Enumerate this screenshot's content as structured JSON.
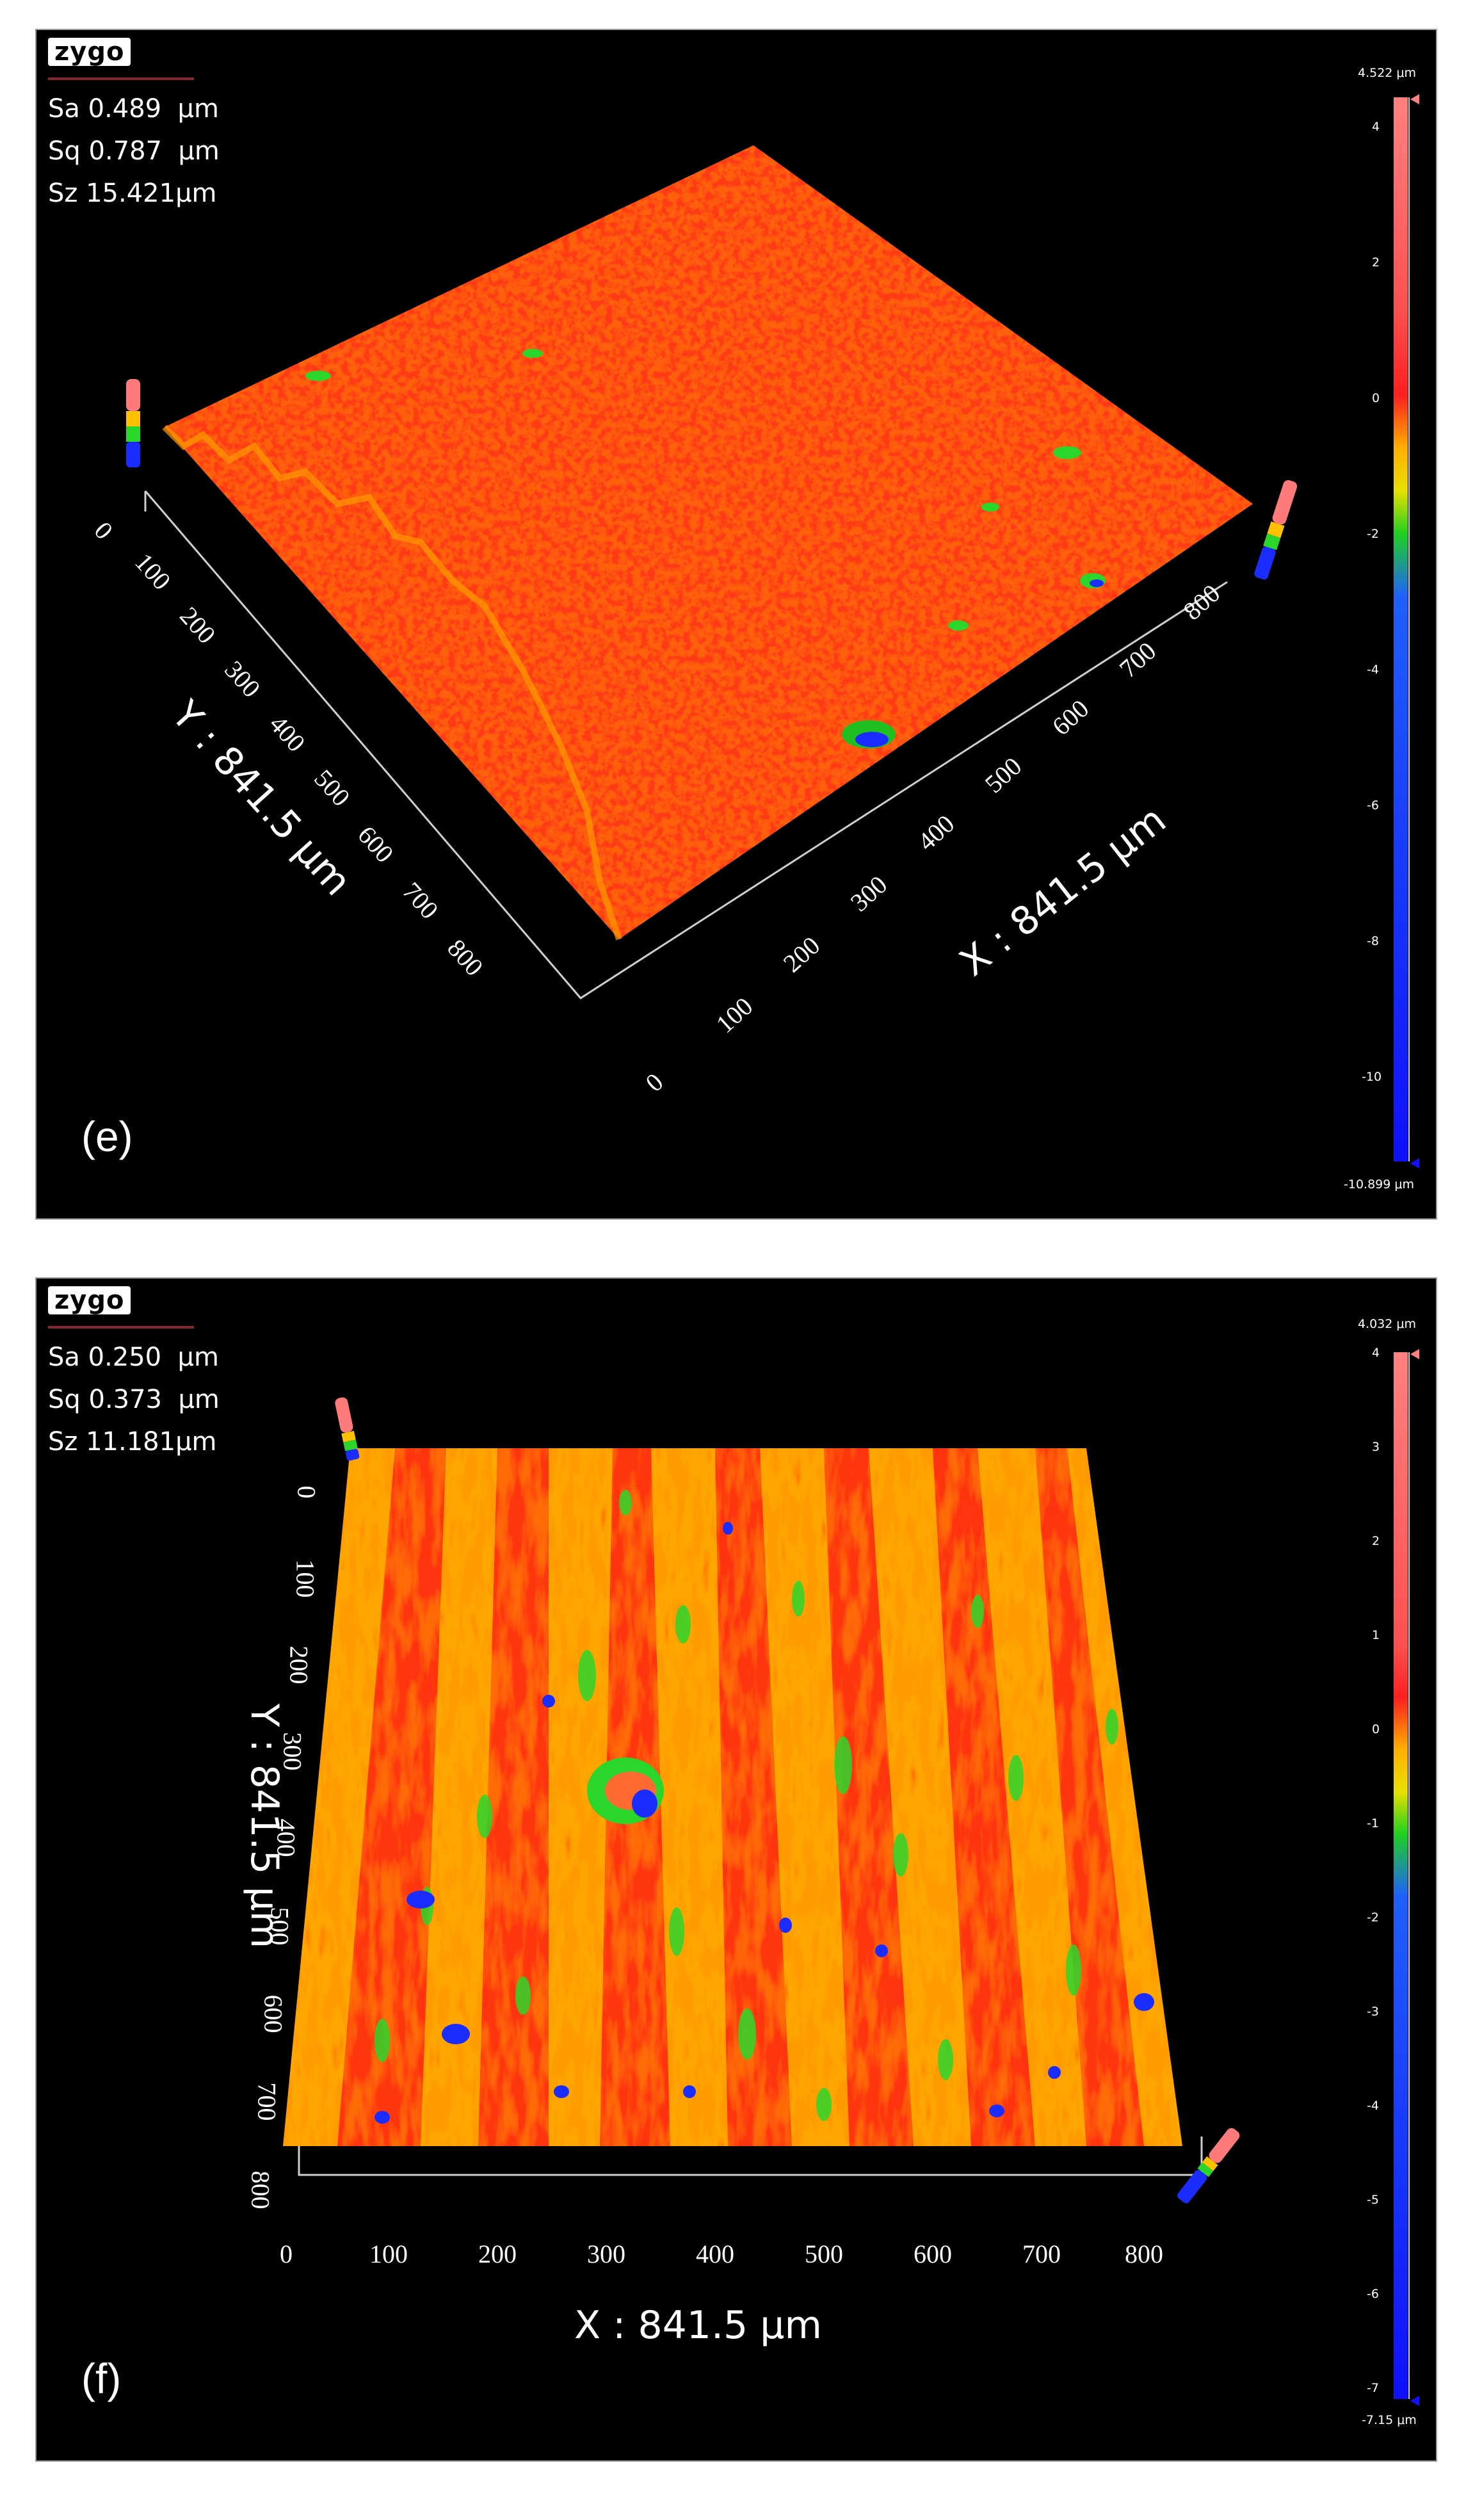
{
  "panels": {
    "e": {
      "label": "(e)",
      "logo": "zygo",
      "stats": {
        "sa": "Sa 0.489  μm",
        "sq": "Sq 0.787  μm",
        "sz": "Sz 15.421μm"
      },
      "colorbar": {
        "max": "4.522 μm",
        "min": "-10.899 μm",
        "ticks": [
          "4",
          "2",
          "0",
          "-2",
          "-4",
          "-6",
          "-8",
          "-10"
        ]
      },
      "x_axis": {
        "title": "X : 841.5 μm",
        "ticks": [
          "0",
          "100",
          "200",
          "300",
          "400",
          "500",
          "600",
          "700",
          "800"
        ]
      },
      "y_axis": {
        "title": "Y : 841.5 μm",
        "ticks": [
          "0",
          "100",
          "200",
          "300",
          "400",
          "500",
          "600",
          "700",
          "800"
        ]
      }
    },
    "f": {
      "label": "(f)",
      "logo": "zygo",
      "stats": {
        "sa": "Sa 0.250  μm",
        "sq": "Sq 0.373  μm",
        "sz": "Sz 11.181μm"
      },
      "colorbar": {
        "max": "4.032 μm",
        "min": "-7.15 μm",
        "ticks": [
          "4",
          "3",
          "2",
          "1",
          "0",
          "-1",
          "-2",
          "-3",
          "-4",
          "-5",
          "-6",
          "-7"
        ]
      },
      "x_axis": {
        "title": "X : 841.5 μm",
        "ticks": [
          "0",
          "100",
          "200",
          "300",
          "400",
          "500",
          "600",
          "700",
          "800"
        ]
      },
      "y_axis": {
        "title": "Y : 841.5 μm",
        "ticks": [
          "0",
          "100",
          "200",
          "300",
          "400",
          "500",
          "600",
          "700",
          "800"
        ]
      }
    }
  },
  "colors": {
    "surface_high": "#ff2a10",
    "surface_mid": "#ffb000",
    "surface_low": "#2bd62b",
    "pit": "#1a2cff"
  }
}
